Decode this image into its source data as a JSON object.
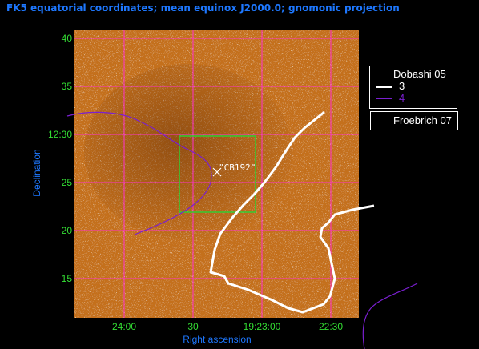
{
  "title": "FK5 equatorial coordinates; mean equinox J2000.0; gnomonic projection",
  "colors": {
    "grid": "#ff33cc",
    "tick_label": "#33dd33",
    "axis_label": "#1e78ff",
    "contour_level_3": "#ffffff",
    "contour_level_4": "#7a1fd0",
    "box": "#33cc33",
    "image_base": "#c9741c"
  },
  "axes": {
    "xlabel": "Right ascension",
    "ylabel": "Declination",
    "x_ticks": [
      "24:00",
      "30",
      "19:23:00",
      "22:30"
    ],
    "y_ticks": [
      "40",
      "35",
      "12:30",
      "25",
      "20",
      "15"
    ]
  },
  "marker": {
    "symbol": "×",
    "label": "\"CB192\""
  },
  "legend_dobashi": {
    "title": "Dobashi 05",
    "entries": [
      {
        "label": "3",
        "color": "#ffffff"
      },
      {
        "label": "4",
        "color": "#7a1fd0"
      }
    ]
  },
  "legend_froebrich": {
    "title": "Froebrich 07"
  }
}
